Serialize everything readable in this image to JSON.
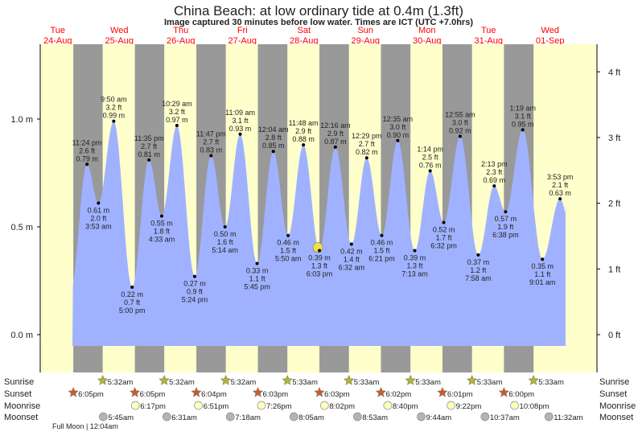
{
  "title": "China Beach: at low  ordinary tide at 0.4m (1.3ft)",
  "subtitle": "Image captured 30 minutes before low water. Times are ICT (UTC +7.0hrs)",
  "colors": {
    "day_bg": "#ffffcc",
    "night_bg": "#999999",
    "tide_fill": "#a0b2ff",
    "day_text": "#ff0000",
    "sunrise": "#b5b52a",
    "sunset": "#cc5a2a",
    "moonrise": "#ffffc0",
    "moonset": "#b5b5ad",
    "now_marker": "#f0e040"
  },
  "chart_data": {
    "type": "area",
    "title": "China Beach: at low  ordinary tide at 0.4m (1.3ft)",
    "ylabel_left_unit": "m",
    "ylabel_right_unit": "ft",
    "yticks_left": [
      "0.0 m",
      "0.5 m",
      "1.0 m"
    ],
    "yticks_left_values": [
      0.0,
      0.5,
      1.0
    ],
    "yticks_right": [
      "0 ft",
      "1 ft",
      "2 ft",
      "3 ft",
      "4 ft"
    ],
    "yticks_right_values": [
      0,
      1,
      2,
      3,
      4
    ],
    "days": [
      {
        "dow": "Tue",
        "date": "24-Aug"
      },
      {
        "dow": "Wed",
        "date": "25-Aug"
      },
      {
        "dow": "Thu",
        "date": "26-Aug"
      },
      {
        "dow": "Fri",
        "date": "27-Aug"
      },
      {
        "dow": "Sat",
        "date": "28-Aug"
      },
      {
        "dow": "Sun",
        "date": "29-Aug"
      },
      {
        "dow": "Mon",
        "date": "30-Aug"
      },
      {
        "dow": "Tue",
        "date": "31-Aug"
      },
      {
        "dow": "Wed",
        "date": "01-Sep"
      }
    ],
    "tides": [
      {
        "date": "24-Aug",
        "time": "11:24 pm",
        "m": 0.79,
        "ft": "2.6 ft",
        "type": "high"
      },
      {
        "date": "25-Aug",
        "time": "3:53 am",
        "m": 0.61,
        "ft": "2.0 ft",
        "type": "low"
      },
      {
        "date": "25-Aug",
        "time": "9:50 am",
        "m": 0.99,
        "ft": "3.2 ft",
        "type": "high"
      },
      {
        "date": "25-Aug",
        "time": "5:00 pm",
        "m": 0.22,
        "ft": "0.7 ft",
        "type": "low"
      },
      {
        "date": "25-Aug",
        "time": "11:35 pm",
        "m": 0.81,
        "ft": "2.7 ft",
        "type": "high"
      },
      {
        "date": "26-Aug",
        "time": "4:33 am",
        "m": 0.55,
        "ft": "1.8 ft",
        "type": "low"
      },
      {
        "date": "26-Aug",
        "time": "10:29 am",
        "m": 0.97,
        "ft": "3.2 ft",
        "type": "high"
      },
      {
        "date": "26-Aug",
        "time": "5:24 pm",
        "m": 0.27,
        "ft": "0.9 ft",
        "type": "low"
      },
      {
        "date": "26-Aug",
        "time": "11:47 pm",
        "m": 0.83,
        "ft": "2.7 ft",
        "type": "high"
      },
      {
        "date": "27-Aug",
        "time": "5:14 am",
        "m": 0.5,
        "ft": "1.6 ft",
        "type": "low"
      },
      {
        "date": "27-Aug",
        "time": "11:09 am",
        "m": 0.93,
        "ft": "3.1 ft",
        "type": "high"
      },
      {
        "date": "27-Aug",
        "time": "5:45 pm",
        "m": 0.33,
        "ft": "1.1 ft",
        "type": "low"
      },
      {
        "date": "28-Aug",
        "time": "12:04 am",
        "m": 0.85,
        "ft": "2.8 ft",
        "type": "high"
      },
      {
        "date": "28-Aug",
        "time": "5:50 am",
        "m": 0.46,
        "ft": "1.5 ft",
        "type": "low"
      },
      {
        "date": "28-Aug",
        "time": "11:48 am",
        "m": 0.88,
        "ft": "2.9 ft",
        "type": "high"
      },
      {
        "date": "28-Aug",
        "time": "6:03 pm",
        "m": 0.39,
        "ft": "1.3 ft",
        "type": "low",
        "now": true
      },
      {
        "date": "29-Aug",
        "time": "12:16 am",
        "m": 0.87,
        "ft": "2.9 ft",
        "type": "high"
      },
      {
        "date": "29-Aug",
        "time": "6:32 am",
        "m": 0.42,
        "ft": "1.4 ft",
        "type": "low"
      },
      {
        "date": "29-Aug",
        "time": "12:29 pm",
        "m": 0.82,
        "ft": "2.7 ft",
        "type": "high"
      },
      {
        "date": "29-Aug",
        "time": "6:21 pm",
        "m": 0.46,
        "ft": "1.5 ft",
        "type": "low"
      },
      {
        "date": "30-Aug",
        "time": "12:35 am",
        "m": 0.9,
        "ft": "3.0 ft",
        "type": "high"
      },
      {
        "date": "30-Aug",
        "time": "7:13 am",
        "m": 0.39,
        "ft": "1.3 ft",
        "type": "low"
      },
      {
        "date": "30-Aug",
        "time": "1:14 pm",
        "m": 0.76,
        "ft": "2.5 ft",
        "type": "high"
      },
      {
        "date": "30-Aug",
        "time": "6:32 pm",
        "m": 0.52,
        "ft": "1.7 ft",
        "type": "low"
      },
      {
        "date": "31-Aug",
        "time": "12:55 am",
        "m": 0.92,
        "ft": "3.0 ft",
        "type": "high"
      },
      {
        "date": "31-Aug",
        "time": "7:58 am",
        "m": 0.37,
        "ft": "1.2 ft",
        "type": "low"
      },
      {
        "date": "31-Aug",
        "time": "2:13 pm",
        "m": 0.69,
        "ft": "2.3 ft",
        "type": "high"
      },
      {
        "date": "31-Aug",
        "time": "6:38 pm",
        "m": 0.57,
        "ft": "1.9 ft",
        "type": "low"
      },
      {
        "date": "01-Sep",
        "time": "1:19 am",
        "m": 0.95,
        "ft": "3.1 ft",
        "type": "high"
      },
      {
        "date": "01-Sep",
        "time": "9:01 am",
        "m": 0.35,
        "ft": "1.1 ft",
        "type": "low"
      },
      {
        "date": "01-Sep",
        "time": "3:53 pm",
        "m": 0.63,
        "ft": "2.1 ft",
        "type": "high"
      }
    ]
  },
  "rows": {
    "sunrise": {
      "label": "Sunrise",
      "events": [
        {
          "date": "25-Aug",
          "time": "5:32am"
        },
        {
          "date": "26-Aug",
          "time": "5:32am"
        },
        {
          "date": "27-Aug",
          "time": "5:32am"
        },
        {
          "date": "28-Aug",
          "time": "5:33am"
        },
        {
          "date": "29-Aug",
          "time": "5:33am"
        },
        {
          "date": "30-Aug",
          "time": "5:33am"
        },
        {
          "date": "31-Aug",
          "time": "5:33am"
        },
        {
          "date": "01-Sep",
          "time": "5:33am"
        }
      ]
    },
    "sunset": {
      "label": "Sunset",
      "events": [
        {
          "date": "24-Aug",
          "time": "6:05pm"
        },
        {
          "date": "25-Aug",
          "time": "6:05pm"
        },
        {
          "date": "26-Aug",
          "time": "6:04pm"
        },
        {
          "date": "27-Aug",
          "time": "6:03pm"
        },
        {
          "date": "28-Aug",
          "time": "6:03pm"
        },
        {
          "date": "29-Aug",
          "time": "6:02pm"
        },
        {
          "date": "30-Aug",
          "time": "6:01pm"
        },
        {
          "date": "31-Aug",
          "time": "6:00pm"
        }
      ]
    },
    "moonrise": {
      "label": "Moonrise",
      "events": [
        {
          "date": "25-Aug",
          "time": "6:17pm"
        },
        {
          "date": "26-Aug",
          "time": "6:51pm"
        },
        {
          "date": "27-Aug",
          "time": "7:26pm"
        },
        {
          "date": "28-Aug",
          "time": "8:02pm"
        },
        {
          "date": "29-Aug",
          "time": "8:40pm"
        },
        {
          "date": "30-Aug",
          "time": "9:22pm"
        },
        {
          "date": "31-Aug",
          "time": "10:08pm"
        }
      ]
    },
    "moonset": {
      "label": "Moonset",
      "events": [
        {
          "date": "25-Aug",
          "time": "5:45am"
        },
        {
          "date": "26-Aug",
          "time": "6:31am"
        },
        {
          "date": "27-Aug",
          "time": "7:18am"
        },
        {
          "date": "28-Aug",
          "time": "8:05am"
        },
        {
          "date": "29-Aug",
          "time": "8:53am"
        },
        {
          "date": "30-Aug",
          "time": "9:44am"
        },
        {
          "date": "31-Aug",
          "time": "10:37am"
        },
        {
          "date": "01-Sep",
          "time": "11:32am"
        }
      ]
    }
  },
  "moon_phase": {
    "label": "Full Moon",
    "time": "12:04am"
  }
}
